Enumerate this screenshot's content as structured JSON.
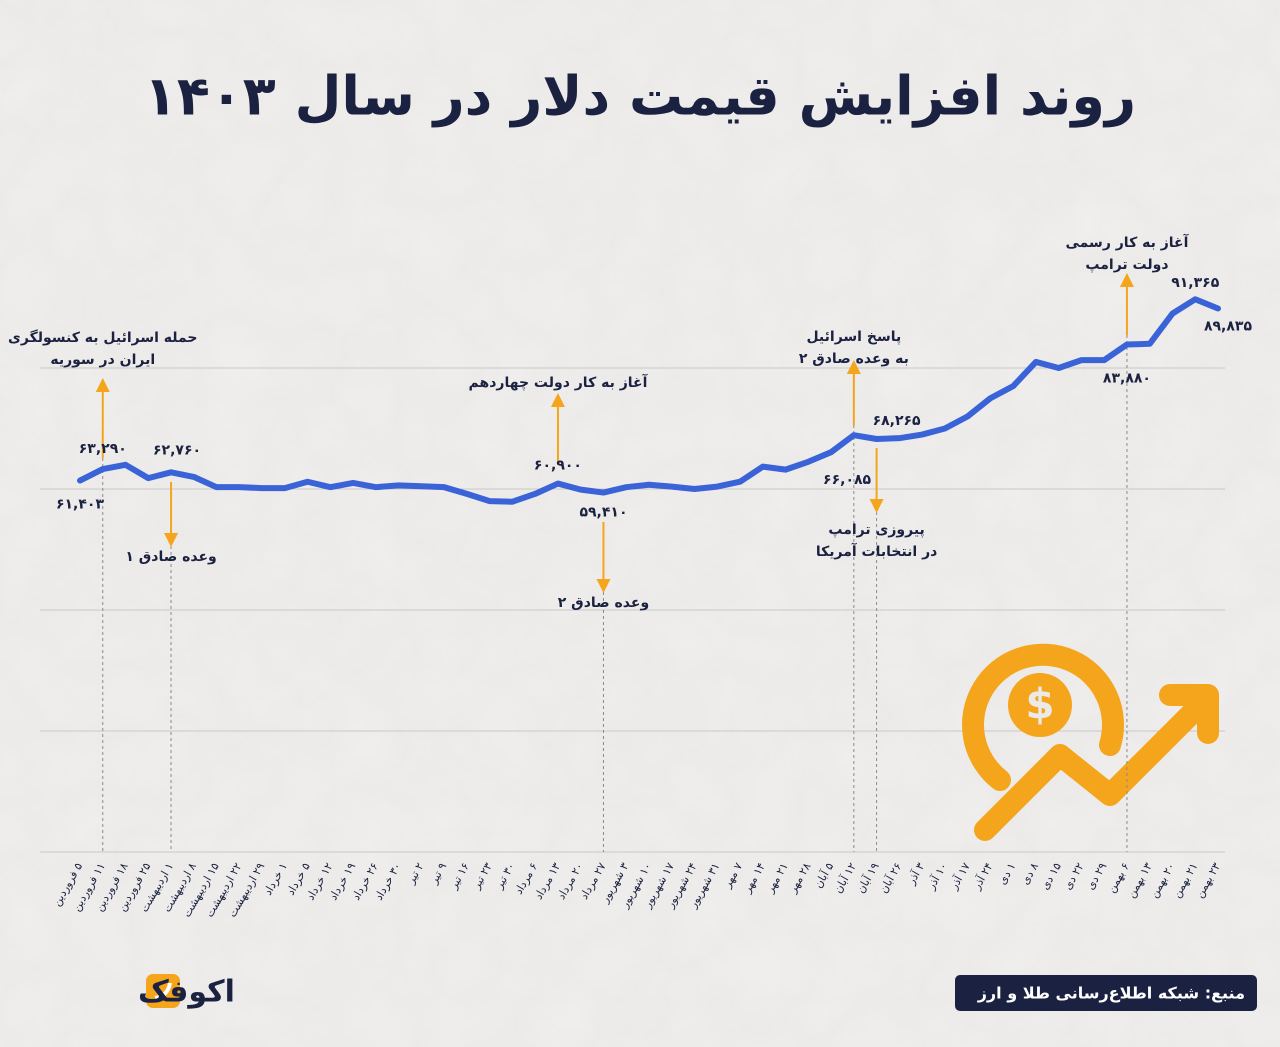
{
  "chart_data": {
    "type": "line",
    "title": "روند افزایش قیمت دلار در سال ۱۴۰۳",
    "categories": [
      "۵ فروردین",
      "۱۱ فروردین",
      "۱۸ فروردین",
      "۲۵ فروردین",
      "۱ اردیبهشت",
      "۸ اردیبهشت",
      "۱۵ اردیبهشت",
      "۲۲ اردیبهشت",
      "۲۹ اردیبهشت",
      "۱ خرداد",
      "۵ خرداد",
      "۱۲ خرداد",
      "۱۹ خرداد",
      "۲۶ خرداد",
      "۳۰ خرداد",
      "۲ تیر",
      "۹ تیر",
      "۱۶ تیر",
      "۲۳ تیر",
      "۳۰ تیر",
      "۶ مرداد",
      "۱۳ مرداد",
      "۲۰ مرداد",
      "۲۷ مرداد",
      "۳ شهریور",
      "۱۰ شهریور",
      "۱۷ شهریور",
      "۲۴ شهریور",
      "۳۱ شهریور",
      "۷ مهر",
      "۱۴ مهر",
      "۲۱ مهر",
      "۲۸ مهر",
      "۵ آبان",
      "۱۲ آبان",
      "۱۹ آبان",
      "۲۶ آبان",
      "۳ آذر",
      "۱۰ آذر",
      "۱۷ آذر",
      "۲۴ آذر",
      "۱ دی",
      "۸ دی",
      "۱۵ دی",
      "۲۲ دی",
      "۲۹ دی",
      "۶ بهمن",
      "۱۳ بهمن",
      "۲۰ بهمن",
      "۲۱ بهمن",
      "۲۳ بهمن"
    ],
    "series": [
      {
        "name": "قیمت دلار",
        "color": "#3a63d8",
        "values": [
          61403,
          63290,
          64000,
          61800,
          62760,
          62000,
          60300,
          60300,
          60150,
          60150,
          61200,
          60300,
          61000,
          60300,
          60600,
          60450,
          60300,
          59200,
          58000,
          57900,
          59200,
          60900,
          59900,
          59410,
          60300,
          60700,
          60400,
          60000,
          60400,
          61200,
          63700,
          63200,
          64500,
          66085,
          68900,
          68265,
          68400,
          69000,
          70000,
          72000,
          75000,
          77000,
          81000,
          80000,
          81300,
          81300,
          83880,
          84000,
          89000,
          91365,
          89835
        ],
        "value_labels": [
          "۶۱,۴۰۳",
          "۶۳,۲۹۰",
          null,
          null,
          "۶۲,۷۶۰",
          null,
          null,
          null,
          null,
          null,
          null,
          null,
          null,
          null,
          null,
          null,
          null,
          null,
          null,
          null,
          null,
          "۶۰,۹۰۰",
          null,
          "۵۹,۴۱۰",
          null,
          null,
          null,
          null,
          null,
          null,
          null,
          null,
          null,
          "۶۶,۰۸۵",
          null,
          "۶۸,۲۶۵",
          null,
          null,
          null,
          null,
          null,
          null,
          null,
          null,
          null,
          null,
          "۸۳,۸۸۰",
          null,
          null,
          "۹۱,۳۶۵",
          "۸۹,۸۳۵"
        ]
      }
    ],
    "ylim": [
      0,
      100000
    ],
    "yticks": [
      0,
      20000,
      40000,
      60000,
      80000
    ],
    "grid": true,
    "annotations": [
      {
        "lines": [
          "حمله اسرائیل به کنسولگری",
          "ایران در سوریه"
        ]
      },
      {
        "lines": [
          "وعده صادق ۱"
        ]
      },
      {
        "lines": [
          "آغاز به کار دولت چهاردهم"
        ]
      },
      {
        "lines": [
          "وعده صادق ۲"
        ]
      },
      {
        "lines": [
          "پاسخ اسرائیل",
          "به وعده صادق ۲"
        ]
      },
      {
        "lines": [
          "پیروزی ترامپ",
          "در انتخابات آمریکا"
        ]
      },
      {
        "lines": [
          "آغاز به کار رسمی",
          "دولت ترامپ"
        ]
      }
    ],
    "source": "منبع: شبکه اطلاع‌رسانی طلا و ارز",
    "brand": "اکوفک"
  }
}
